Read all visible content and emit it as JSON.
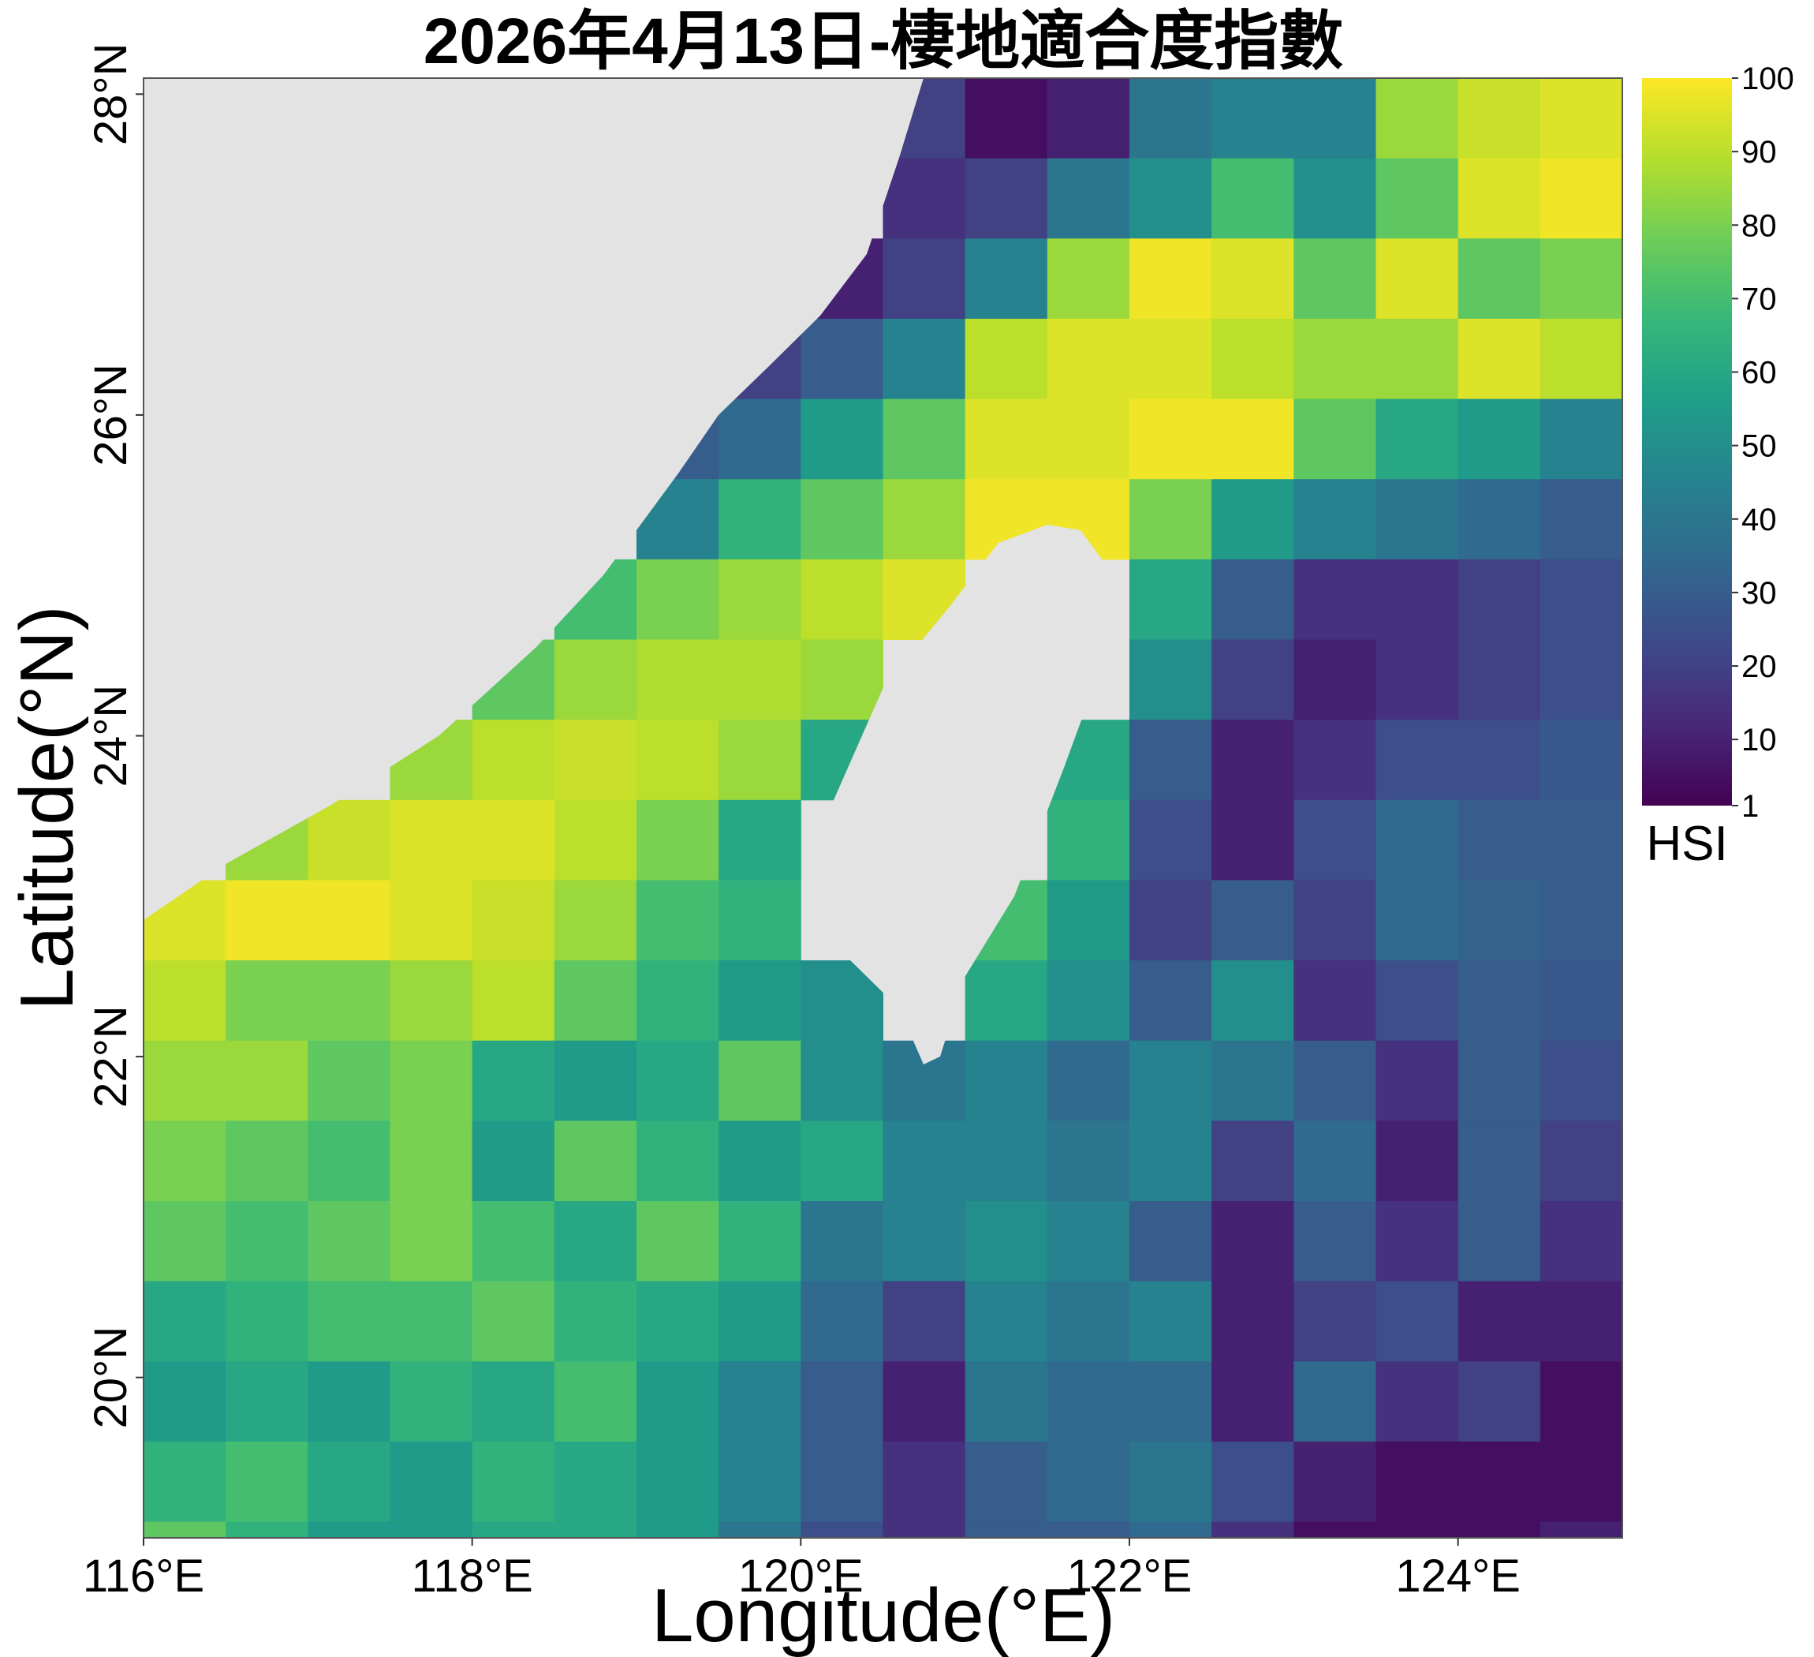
{
  "chart_data": {
    "type": "heatmap",
    "title": "2026年4月13日-棲地適合度指數",
    "x_label": "Longitude(°E)",
    "y_label": "Latitude(°N)",
    "colorbar_label": "HSI",
    "colormap": "viridis",
    "xlim": [
      116,
      125
    ],
    "ylim": [
      19,
      28.1
    ],
    "clim": [
      1,
      100
    ],
    "xticks": [
      {
        "value": 116,
        "label": "116°E"
      },
      {
        "value": 118,
        "label": "118°E"
      },
      {
        "value": 120,
        "label": "120°E"
      },
      {
        "value": 122,
        "label": "122°E"
      },
      {
        "value": 124,
        "label": "124°E"
      }
    ],
    "yticks": [
      {
        "value": 20,
        "label": "20°N"
      },
      {
        "value": 22,
        "label": "22°N"
      },
      {
        "value": 24,
        "label": "24°N"
      },
      {
        "value": 26,
        "label": "26°N"
      },
      {
        "value": 28,
        "label": "28°N"
      }
    ],
    "cticks": [
      1,
      10,
      20,
      30,
      40,
      50,
      60,
      70,
      80,
      90,
      100
    ],
    "x": [
      116.25,
      116.75,
      117.25,
      117.75,
      118.25,
      118.75,
      119.25,
      119.75,
      120.25,
      120.75,
      121.25,
      121.75,
      122.25,
      122.75,
      123.25,
      123.75,
      124.25,
      124.75
    ],
    "y": [
      27.85,
      27.35,
      26.85,
      26.35,
      25.85,
      25.35,
      24.85,
      24.35,
      23.85,
      23.35,
      22.85,
      22.35,
      21.85,
      21.35,
      20.85,
      20.35,
      19.85,
      19.35,
      18.85
    ],
    "z": [
      [
        null,
        null,
        null,
        null,
        null,
        null,
        null,
        null,
        null,
        20,
        5,
        10,
        40,
        45,
        45,
        85,
        92,
        95
      ],
      [
        null,
        null,
        null,
        null,
        null,
        null,
        null,
        null,
        null,
        15,
        20,
        40,
        50,
        70,
        50,
        75,
        95,
        98
      ],
      [
        null,
        null,
        null,
        null,
        null,
        null,
        null,
        null,
        10,
        20,
        45,
        85,
        98,
        95,
        75,
        95,
        75,
        80
      ],
      [
        null,
        null,
        null,
        null,
        null,
        null,
        null,
        20,
        30,
        45,
        90,
        95,
        95,
        90,
        85,
        85,
        95,
        90
      ],
      [
        null,
        null,
        null,
        null,
        null,
        null,
        30,
        35,
        55,
        75,
        95,
        95,
        98,
        98,
        75,
        60,
        55,
        45
      ],
      [
        null,
        null,
        null,
        null,
        null,
        null,
        45,
        65,
        75,
        85,
        98,
        98,
        80,
        55,
        45,
        40,
        35,
        30
      ],
      [
        null,
        null,
        null,
        null,
        null,
        70,
        80,
        85,
        90,
        95,
        null,
        null,
        60,
        30,
        15,
        15,
        20,
        25
      ],
      [
        null,
        null,
        null,
        null,
        75,
        85,
        88,
        88,
        85,
        null,
        null,
        null,
        50,
        20,
        10,
        15,
        20,
        25
      ],
      [
        null,
        null,
        null,
        85,
        90,
        92,
        90,
        85,
        60,
        null,
        null,
        60,
        30,
        10,
        15,
        25,
        25,
        28
      ],
      [
        null,
        85,
        92,
        95,
        95,
        90,
        80,
        60,
        null,
        null,
        null,
        65,
        25,
        10,
        25,
        35,
        30,
        30
      ],
      [
        95,
        98,
        98,
        95,
        92,
        85,
        70,
        65,
        null,
        null,
        70,
        55,
        20,
        30,
        20,
        35,
        32,
        30
      ],
      [
        90,
        80,
        80,
        85,
        90,
        75,
        65,
        55,
        50,
        null,
        60,
        50,
        30,
        50,
        15,
        25,
        30,
        28
      ],
      [
        85,
        85,
        75,
        80,
        60,
        55,
        60,
        75,
        50,
        40,
        45,
        35,
        45,
        40,
        30,
        15,
        30,
        25
      ],
      [
        80,
        75,
        70,
        80,
        55,
        75,
        65,
        55,
        60,
        45,
        45,
        40,
        45,
        20,
        35,
        10,
        30,
        20
      ],
      [
        75,
        70,
        75,
        80,
        70,
        60,
        75,
        65,
        40,
        45,
        50,
        45,
        30,
        10,
        30,
        15,
        30,
        15
      ],
      [
        60,
        65,
        70,
        70,
        75,
        65,
        60,
        55,
        35,
        20,
        45,
        40,
        45,
        10,
        20,
        25,
        10,
        10
      ],
      [
        55,
        60,
        55,
        65,
        60,
        70,
        55,
        45,
        30,
        10,
        40,
        35,
        35,
        10,
        35,
        15,
        20,
        5
      ],
      [
        65,
        70,
        60,
        55,
        65,
        60,
        55,
        45,
        30,
        15,
        30,
        35,
        40,
        25,
        10,
        5,
        5,
        5
      ],
      [
        75,
        65,
        55,
        55,
        60,
        60,
        55,
        40,
        25,
        15,
        30,
        30,
        35,
        15,
        5,
        5,
        5,
        10
      ]
    ]
  }
}
